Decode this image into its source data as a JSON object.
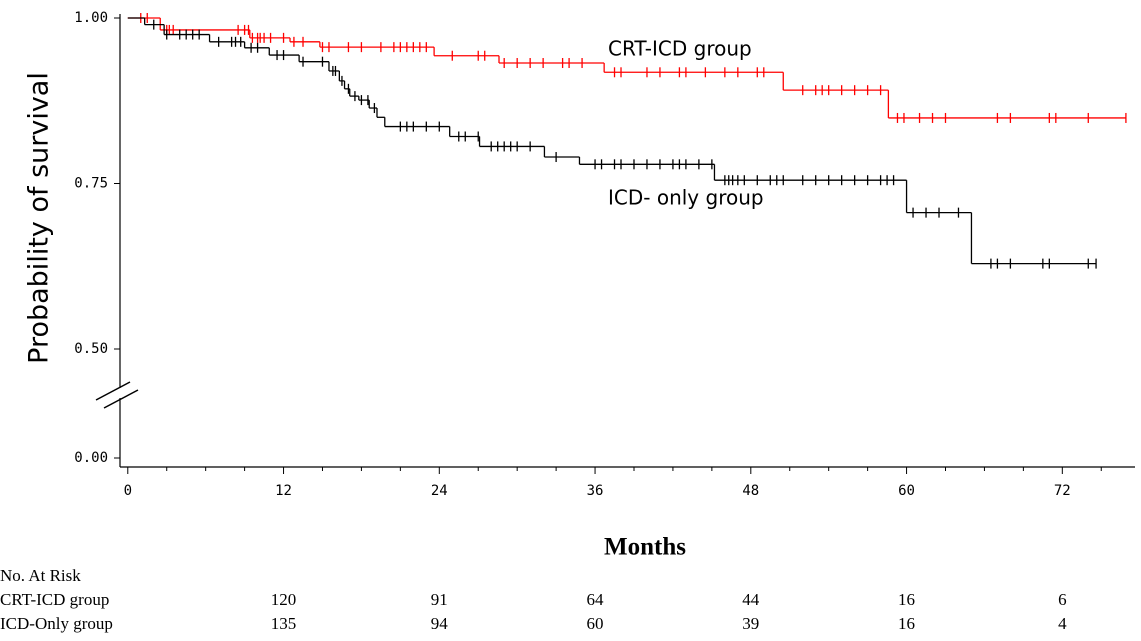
{
  "chart_data": {
    "type": "km",
    "ylabel": "Probability of survival",
    "xlabel": "Months",
    "xlim": [
      -0.6,
      77.6
    ],
    "ylim": [
      0,
      1
    ],
    "ybreak": [
      0,
      0.5
    ],
    "xticks": [
      0,
      12,
      24,
      36,
      48,
      60,
      72
    ],
    "xminorticks": [
      3,
      6,
      9,
      15,
      18,
      21,
      27,
      30,
      33,
      39,
      42,
      45,
      51,
      54,
      57,
      63,
      66,
      69,
      75
    ],
    "yticks": [
      {
        "value": 0,
        "label": "0.00"
      },
      {
        "value": 0.5,
        "label": "0.50"
      },
      0.75,
      {
        "value": 1,
        "label": "1.00"
      }
    ],
    "annotations": [
      "CRT-ICD group",
      "ICD- only group"
    ],
    "series": [
      {
        "color": "#ff0000",
        "x": [
          0,
          2.5,
          9.4,
          12.5,
          14.8,
          23.6,
          28.6,
          36.7,
          50.5,
          58.6
        ],
        "values": [
          1,
          0.982,
          0.97,
          0.964,
          0.956,
          0.943,
          0.932,
          0.918,
          0.891,
          0.849
        ],
        "censored": [
          1,
          1.5,
          3,
          3.2,
          3.5,
          8.5,
          9,
          9.3,
          9.6,
          10,
          10.2,
          10.5,
          11,
          12,
          12.8,
          13.5,
          15,
          15.5,
          17,
          18,
          19.5,
          20.5,
          21,
          21.5,
          22,
          22.5,
          23,
          25,
          27,
          27.5,
          29,
          30,
          31,
          32,
          33.5,
          34,
          35,
          37.5,
          38,
          40,
          41,
          42.5,
          43,
          44.5,
          46,
          47,
          48.5,
          49,
          52,
          53,
          53.5,
          54,
          55,
          56,
          57,
          58,
          59.3,
          59.8,
          61,
          62,
          63,
          67,
          68,
          71,
          71.5,
          74,
          76.9
        ]
      },
      {
        "color": "#000000",
        "x": [
          0,
          1.3,
          2.8,
          6.3,
          9,
          10.9,
          13.2,
          15.5,
          16.3,
          16.7,
          17.1,
          17.8,
          18.6,
          19.2,
          19.8,
          24.8,
          27.1,
          32.1,
          34.8,
          45.2,
          60,
          65
        ],
        "values": [
          1,
          0.99,
          0.975,
          0.964,
          0.955,
          0.944,
          0.934,
          0.92,
          0.905,
          0.893,
          0.882,
          0.876,
          0.864,
          0.85,
          0.836,
          0.821,
          0.806,
          0.79,
          0.779,
          0.755,
          0.706,
          0.629
        ],
        "censored": [
          2,
          3,
          4,
          4.5,
          5,
          5.5,
          7,
          8,
          8.3,
          8.7,
          9.5,
          10,
          11.5,
          12,
          13.5,
          15,
          15.8,
          16,
          16.5,
          17,
          17.5,
          18,
          18.5,
          19,
          21,
          21.5,
          22,
          23,
          24,
          25.5,
          26,
          27,
          28,
          28.5,
          29,
          29.5,
          30,
          31,
          33,
          36,
          36.5,
          37.5,
          38,
          39,
          40,
          41,
          42,
          42.5,
          43,
          44,
          45,
          46,
          46.3,
          46.6,
          47,
          47.5,
          48.5,
          49.5,
          50,
          50.5,
          52,
          53,
          54,
          55,
          56,
          57,
          58,
          58.5,
          59,
          60.5,
          61.5,
          62.5,
          64,
          66.5,
          67,
          68,
          70.5,
          71,
          74,
          74.6
        ]
      }
    ],
    "risk_table": {
      "title": "No. At Risk",
      "rows": [
        {
          "name": "CRT-ICD group",
          "counts": [
            120,
            91,
            64,
            44,
            16,
            6
          ]
        },
        {
          "name": "ICD-Only group",
          "counts": [
            135,
            94,
            60,
            39,
            16,
            4
          ]
        }
      ]
    }
  }
}
